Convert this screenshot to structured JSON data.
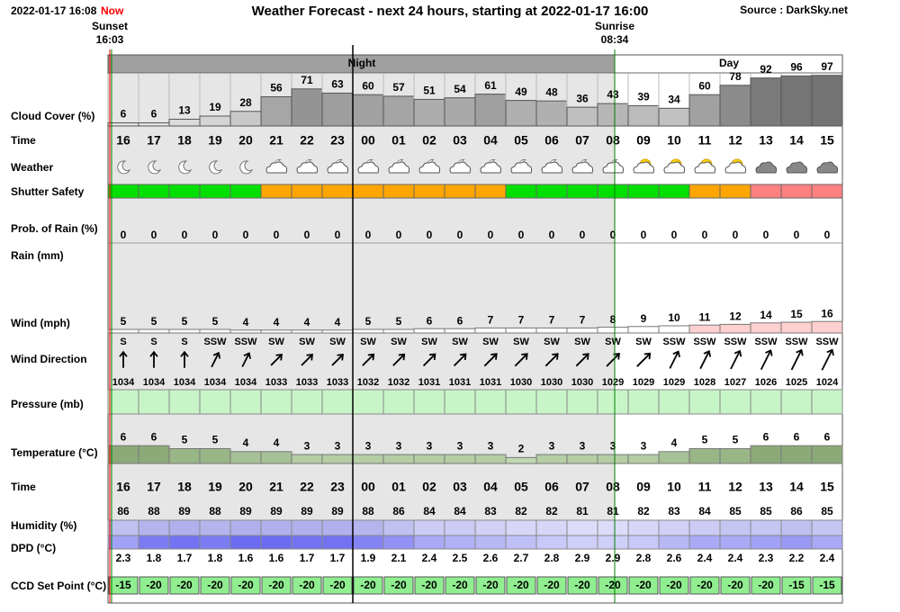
{
  "header": {
    "timestamp": "2022-01-17 16:08",
    "now": "Now",
    "title": "Weather Forecast - next 24 hours, starting at 2022-01-17 16:00",
    "source": "Source : DarkSky.net"
  },
  "sunset": {
    "label": "Sunset",
    "time": "16:03"
  },
  "sunrise": {
    "label": "Sunrise",
    "time": "08:34"
  },
  "periods": [
    "Night",
    "Day"
  ],
  "labels": {
    "cloud_cover": "Cloud Cover (%)",
    "time": "Time",
    "weather": "Weather",
    "shutter_safety": "Shutter Safety",
    "prob_rain": "Prob. of Rain (%)",
    "rain": "Rain (mm)",
    "wind": "Wind (mph)",
    "wind_direction": "Wind Direction",
    "pressure": "Pressure (mb)",
    "temperature": "Temperature (°C)",
    "humidity": "Humidity (%)",
    "dpd": "DPD (°C)",
    "ccd": "CCD Set Point (°C)"
  },
  "hours": [
    "16",
    "17",
    "18",
    "19",
    "20",
    "21",
    "22",
    "23",
    "00",
    "01",
    "02",
    "03",
    "04",
    "05",
    "06",
    "07",
    "08",
    "09",
    "10",
    "11",
    "12",
    "13",
    "14",
    "15"
  ],
  "cloud_cover": [
    6,
    6,
    13,
    19,
    28,
    56,
    71,
    63,
    60,
    57,
    51,
    54,
    61,
    49,
    48,
    36,
    43,
    39,
    34,
    60,
    78,
    92,
    96,
    97
  ],
  "shutter_safety": [
    "#00e000",
    "#00e000",
    "#00e000",
    "#00e000",
    "#00e000",
    "#ffa500",
    "#ffa500",
    "#ffa500",
    "#ffa500",
    "#ffa500",
    "#ffa500",
    "#ffa500",
    "#ffa500",
    "#00e000",
    "#00e000",
    "#00e000",
    "#00e000",
    "#00e000",
    "#00e000",
    "#ffa500",
    "#ffa500",
    "#ff8080",
    "#ff8080",
    "#ff8080"
  ],
  "prob_rain": [
    0,
    0,
    0,
    0,
    0,
    0,
    0,
    0,
    0,
    0,
    0,
    0,
    0,
    0,
    0,
    0,
    0,
    0,
    0,
    0,
    0,
    0,
    0,
    0
  ],
  "wind": [
    5,
    5,
    5,
    5,
    4,
    4,
    4,
    4,
    5,
    5,
    6,
    6,
    7,
    7,
    7,
    7,
    8,
    9,
    10,
    11,
    12,
    14,
    15,
    16
  ],
  "wind_direction": [
    "S",
    "S",
    "S",
    "SSW",
    "SSW",
    "SW",
    "SW",
    "SW",
    "SW",
    "SW",
    "SW",
    "SW",
    "SW",
    "SW",
    "SW",
    "SW",
    "SW",
    "SW",
    "SSW",
    "SSW",
    "SSW",
    "SSW",
    "SSW",
    "SSW"
  ],
  "pressure": [
    1034,
    1034,
    1034,
    1034,
    1034,
    1033,
    1033,
    1033,
    1032,
    1032,
    1031,
    1031,
    1031,
    1030,
    1030,
    1030,
    1029,
    1029,
    1029,
    1028,
    1027,
    1026,
    1025,
    1024
  ],
  "temperature": [
    6,
    6,
    5,
    5,
    4,
    4,
    3,
    3,
    3,
    3,
    3,
    3,
    3,
    2,
    3,
    3,
    3,
    3,
    4,
    5,
    5,
    6,
    6,
    6
  ],
  "humidity": [
    86,
    88,
    89,
    88,
    89,
    89,
    89,
    89,
    88,
    86,
    84,
    84,
    83,
    82,
    82,
    81,
    81,
    82,
    83,
    84,
    85,
    85,
    86,
    85
  ],
  "dpd": [
    2.3,
    1.8,
    1.7,
    1.8,
    1.6,
    1.6,
    1.7,
    1.7,
    1.9,
    2.1,
    2.4,
    2.5,
    2.6,
    2.7,
    2.8,
    2.9,
    2.9,
    2.8,
    2.6,
    2.4,
    2.4,
    2.3,
    2.2,
    2.4
  ],
  "ccd_set_point": [
    -15,
    -20,
    -20,
    -20,
    -20,
    -20,
    -20,
    -20,
    -20,
    -20,
    -20,
    -20,
    -20,
    -20,
    -20,
    -20,
    -20,
    -20,
    -20,
    -20,
    -20,
    -20,
    -15,
    -15
  ]
}
